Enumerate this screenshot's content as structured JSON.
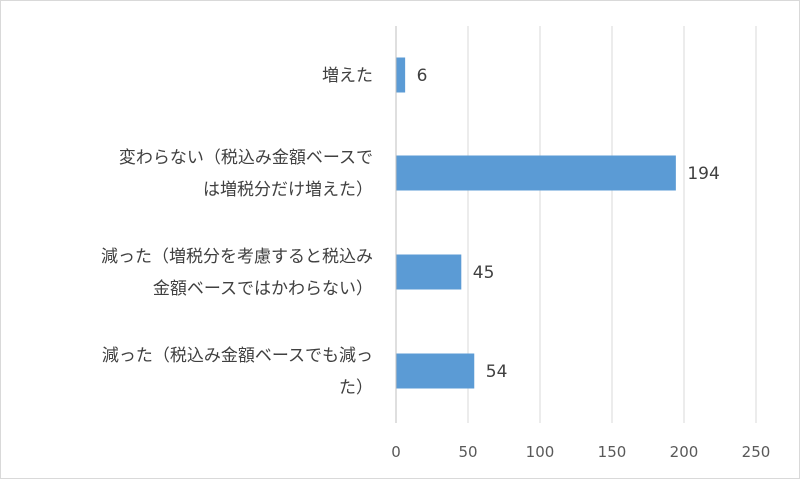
{
  "chart_data": {
    "type": "bar",
    "orientation": "horizontal",
    "categories": [
      [
        "増えた"
      ],
      [
        "変わらない（税込み金額ベースで",
        "は増税分だけ増えた）"
      ],
      [
        "減った（増税分を考慮すると税込み",
        "金額ベースではかわらない）"
      ],
      [
        "減った（税込み金額ベースでも減っ",
        "た）"
      ]
    ],
    "values": [
      6,
      194,
      45,
      54
    ],
    "data_labels": [
      "6",
      "194",
      "45",
      "54"
    ],
    "xlim": [
      0,
      250
    ],
    "x_ticks": [
      0,
      50,
      100,
      150,
      200,
      250
    ],
    "x_tick_labels": [
      "0",
      "50",
      "100",
      "150",
      "200",
      "250"
    ],
    "title": "",
    "xlabel": "",
    "ylabel": "",
    "grid": "vertical",
    "legend": "none",
    "bar_color": "#5b9bd5",
    "gridline_color": "#d9d9d9",
    "text_color": "#404040"
  }
}
